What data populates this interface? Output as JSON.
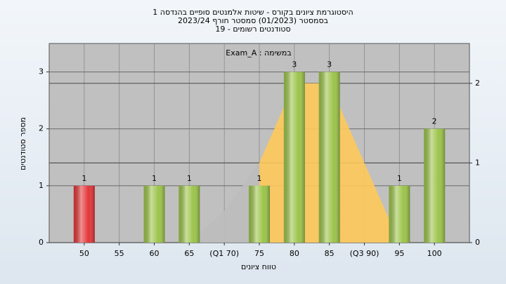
{
  "chart_data": {
    "type": "bar",
    "title": "היסטוגרמת ציונים בקורס - שיטות אלמנטים סופיים בהנדסה 1",
    "subtitle": [
      "בסמסטר  (01/2023)  סמסטר חורף 2023/24",
      "סטודנטים רשומים - 19"
    ],
    "annotation": "במשימה : Exam_A",
    "x_label": "טווח ציונים",
    "y_label": "מספר סטודנטים",
    "categories": [
      "50",
      "55",
      "60",
      "65",
      "(Q1 70)",
      "75",
      "80",
      "85",
      "(Q3 90)",
      "95",
      "100"
    ],
    "values": [
      1,
      0,
      1,
      1,
      0,
      1,
      3,
      3,
      0,
      1,
      2
    ],
    "value_labels": [
      "1",
      null,
      "1",
      "1",
      null,
      "1",
      "3",
      "3",
      null,
      "1",
      "2"
    ],
    "colors": [
      "#e2363a",
      "#9cc44a",
      "#9cc44a",
      "#9cc44a",
      "#9cc44a",
      "#9cc44a",
      "#9cc44a",
      "#9cc44a",
      "#9cc44a",
      "#9cc44a",
      "#9cc44a"
    ],
    "ylim": [
      0,
      3.5
    ],
    "yticks": [
      0,
      1,
      2,
      3
    ],
    "y2lim": [
      0,
      2.5
    ],
    "y2ticks": [
      0,
      1,
      2
    ],
    "grid": true,
    "series": [
      {
        "color": "#bdbdbd",
        "axis": "y2",
        "values": [
          null,
          null,
          null,
          0,
          0.4,
          1,
          null,
          null,
          null,
          null,
          null
        ]
      },
      {
        "color": "#fdc95a",
        "axis": "y2",
        "values": [
          null,
          null,
          null,
          null,
          null,
          1,
          2,
          2,
          1,
          0,
          null
        ]
      }
    ]
  }
}
